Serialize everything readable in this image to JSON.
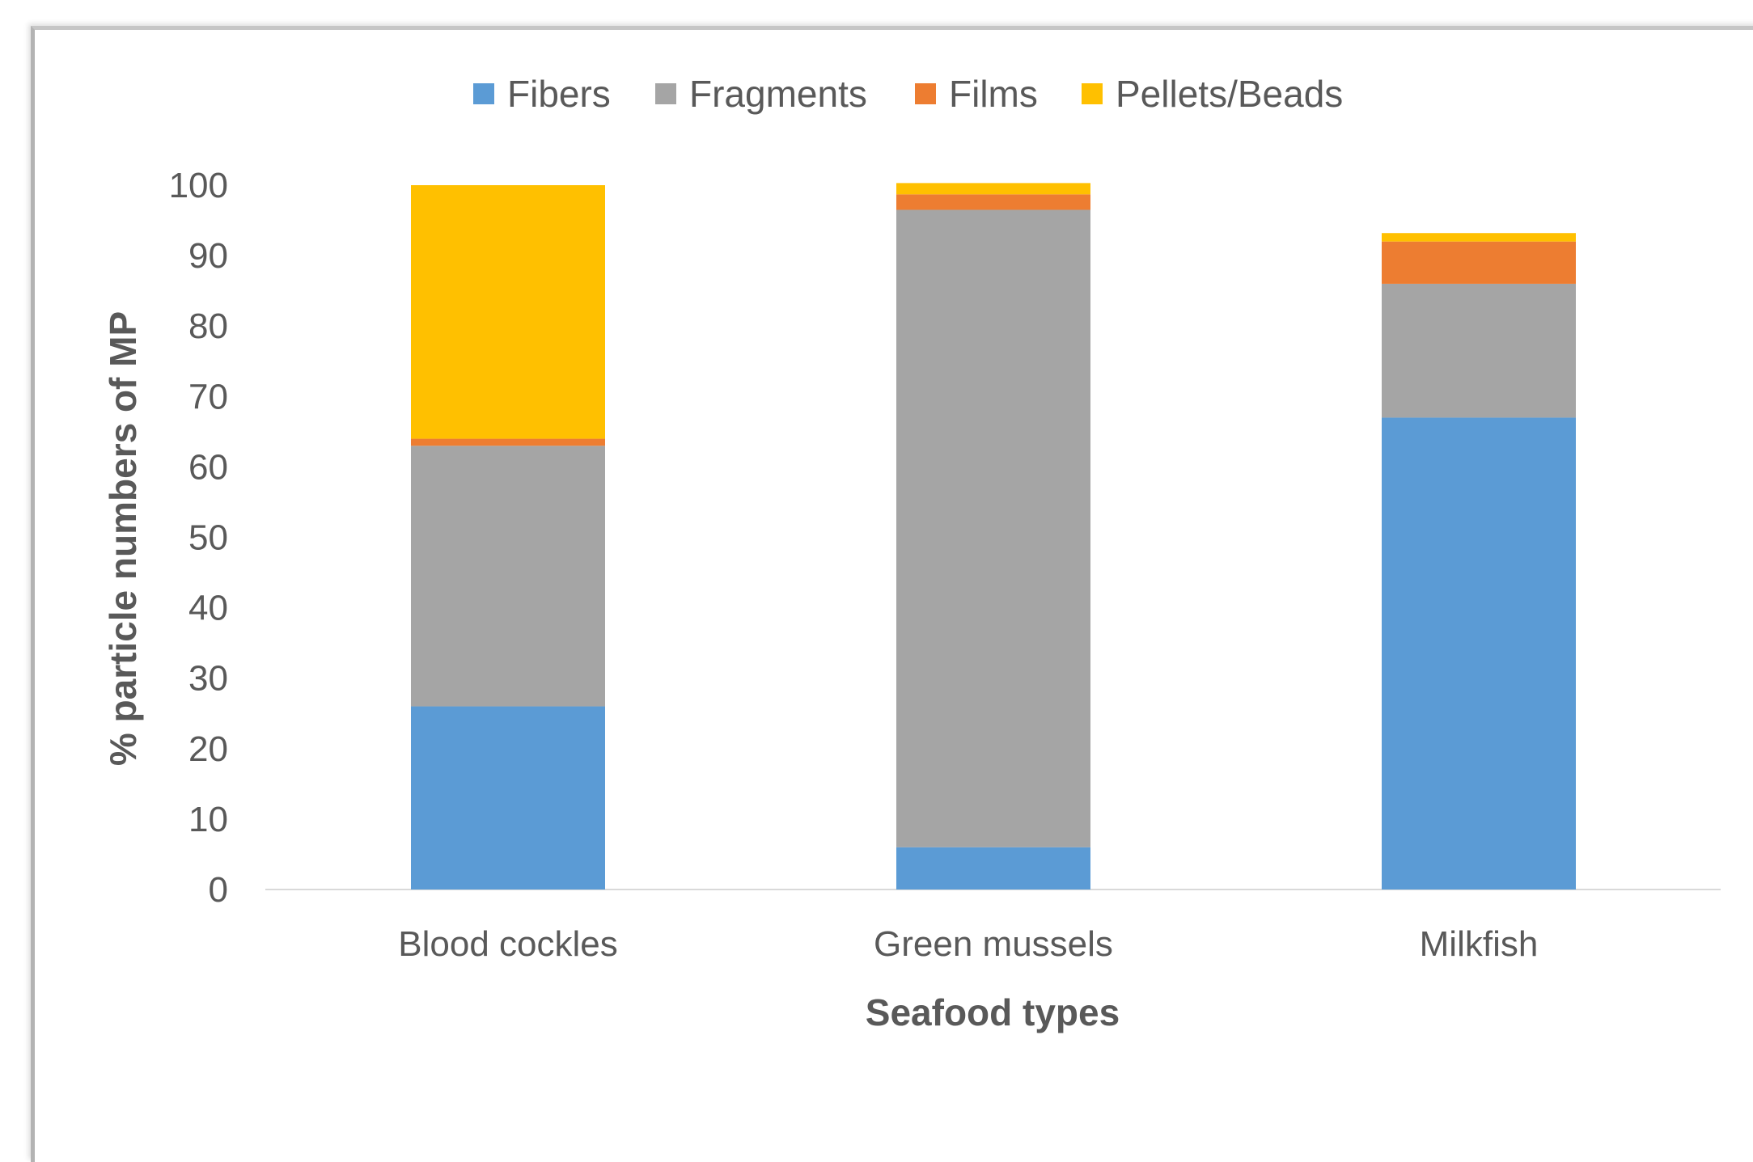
{
  "chart_data": {
    "type": "bar",
    "stacked": true,
    "categories": [
      "Blood cockles",
      "Green mussels",
      "Milkfish"
    ],
    "series": [
      {
        "name": "Fibers",
        "color": "#5B9BD5",
        "values": [
          26,
          6,
          67
        ]
      },
      {
        "name": "Fragments",
        "color": "#A5A5A5",
        "values": [
          37,
          90.5,
          19
        ]
      },
      {
        "name": "Films",
        "color": "#ED7D31",
        "values": [
          1,
          2.2,
          6
        ]
      },
      {
        "name": "Pellets/Beads",
        "color": "#FFC000",
        "values": [
          36,
          1.6,
          1.2
        ]
      }
    ],
    "xlabel": "Seafood types",
    "ylabel": "% particle numbers of MP",
    "ylim": [
      0,
      100
    ],
    "yticks": [
      0,
      10,
      20,
      30,
      40,
      50,
      60,
      70,
      80,
      90,
      100
    ],
    "legend_position": "top",
    "grid": false
  }
}
